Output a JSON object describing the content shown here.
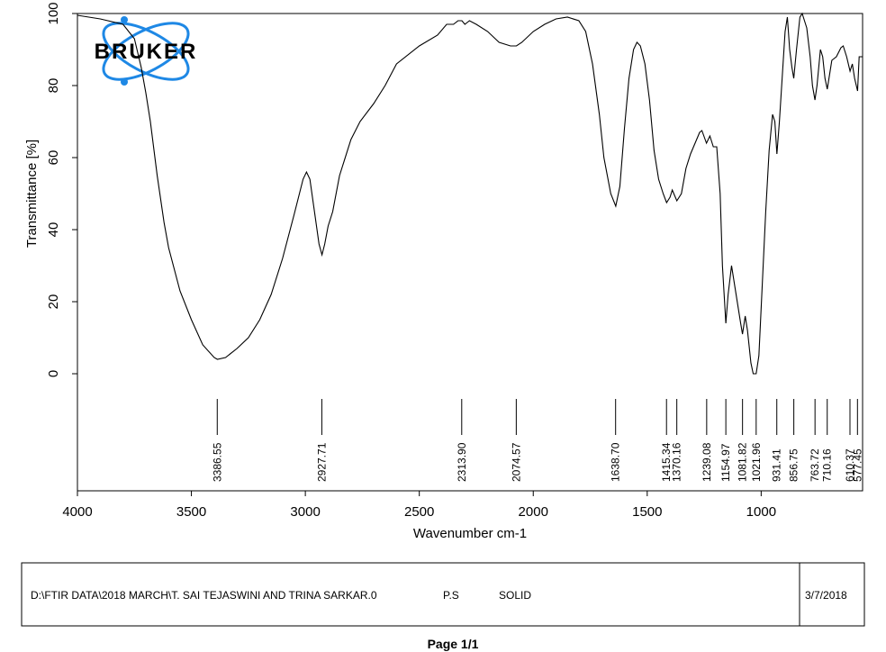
{
  "chart_data": {
    "type": "line",
    "logo": "BRUKER",
    "xlabel": "Wavenumber cm-1",
    "ylabel": "Transmittance [%]",
    "xlim": [
      4000,
      555
    ],
    "ylim": [
      -32.5,
      100
    ],
    "xticks": [
      4000,
      3500,
      3000,
      2500,
      2000,
      1500,
      1000
    ],
    "yticks": [
      0,
      20,
      40,
      60,
      80,
      100
    ],
    "x": [
      4000,
      3900,
      3800,
      3750,
      3720,
      3700,
      3680,
      3650,
      3620,
      3600,
      3550,
      3500,
      3450,
      3400,
      3386,
      3350,
      3300,
      3250,
      3200,
      3150,
      3100,
      3050,
      3010,
      2995,
      2980,
      2960,
      2940,
      2927,
      2915,
      2900,
      2880,
      2850,
      2800,
      2760,
      2700,
      2650,
      2600,
      2500,
      2420,
      2380,
      2350,
      2330,
      2313,
      2300,
      2280,
      2250,
      2200,
      2150,
      2100,
      2074,
      2050,
      2000,
      1950,
      1900,
      1850,
      1800,
      1770,
      1740,
      1710,
      1690,
      1660,
      1638,
      1620,
      1600,
      1580,
      1560,
      1545,
      1530,
      1510,
      1490,
      1470,
      1450,
      1430,
      1415,
      1400,
      1390,
      1370,
      1350,
      1330,
      1310,
      1290,
      1270,
      1260,
      1240,
      1225,
      1210,
      1195,
      1180,
      1170,
      1155,
      1145,
      1130,
      1115,
      1100,
      1090,
      1082,
      1070,
      1060,
      1045,
      1035,
      1022,
      1010,
      995,
      980,
      965,
      950,
      940,
      931,
      920,
      905,
      895,
      885,
      875,
      865,
      857,
      845,
      830,
      820,
      800,
      785,
      775,
      764,
      755,
      740,
      730,
      720,
      710,
      700,
      690,
      670,
      650,
      640,
      625,
      610,
      600,
      590,
      577,
      570,
      555
    ],
    "series": [
      {
        "color": "#000000",
        "values": [
          99.5,
          98.5,
          97,
          93,
          85,
          78,
          70,
          55,
          42,
          35,
          23,
          15,
          8,
          4.5,
          4,
          4.5,
          7,
          10,
          15,
          22,
          32,
          44,
          54,
          56,
          54,
          45,
          36,
          33,
          36,
          41,
          45,
          55,
          65,
          70,
          75,
          80,
          86,
          91,
          94,
          97,
          97,
          98,
          98,
          97,
          98,
          97,
          95,
          92,
          91,
          91,
          92,
          95,
          97,
          98.5,
          99,
          98,
          95,
          86,
          72,
          60,
          50,
          46.5,
          52,
          68,
          82,
          90,
          92,
          91,
          86,
          76,
          62,
          54,
          50,
          47.5,
          49,
          51,
          48,
          50,
          57,
          61,
          64,
          67,
          67.5,
          64,
          66,
          63,
          63,
          50,
          30,
          14,
          22,
          30,
          24,
          18,
          14,
          11,
          16,
          12,
          3,
          0,
          0,
          5,
          25,
          45,
          62,
          72,
          70,
          61,
          70,
          85,
          95,
          99,
          90,
          85,
          82,
          90,
          99,
          100,
          96,
          88,
          80,
          76,
          80,
          90,
          88,
          82,
          79,
          83,
          87,
          88,
          90.5,
          91,
          88,
          84,
          86,
          82,
          78.5,
          88,
          88
        ]
      }
    ],
    "peaks": [
      3386.55,
      2927.71,
      {
        "value": 2313.9,
        "label": "2313.90"
      },
      2074.57,
      {
        "value": 1638.7,
        "label": "1638.70"
      },
      1415.34,
      1370.16,
      1239.08,
      1154.97,
      1081.82,
      1021.96,
      931.41,
      856.75,
      763.72,
      710.16,
      610.37,
      577.45
    ],
    "footer": {
      "file": "D:\\FTIR DATA\\2018 MARCH\\T. SAI TEJASWINI AND TRINA SARKAR.0",
      "sample": "P.S",
      "state": "SOLID",
      "date": "3/7/2018"
    },
    "page": "Page 1/1"
  }
}
